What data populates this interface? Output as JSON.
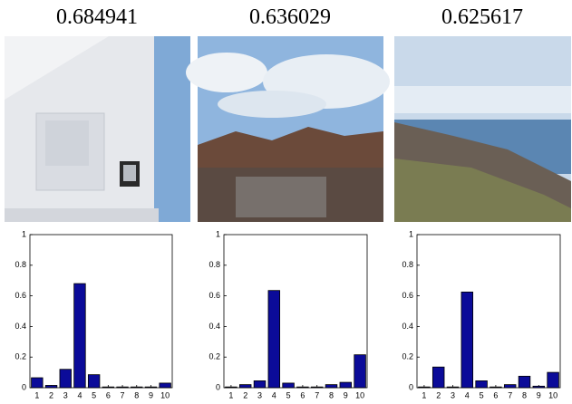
{
  "chart_data": [
    {
      "type": "bar",
      "title": "0.684941",
      "categories": [
        "1",
        "2",
        "3",
        "4",
        "5",
        "6",
        "7",
        "8",
        "9",
        "10"
      ],
      "values": [
        0.065,
        0.015,
        0.12,
        0.68,
        0.085,
        0.005,
        0.005,
        0.005,
        0.005,
        0.03
      ],
      "color": "#0b0b99",
      "ylim": [
        0,
        1
      ],
      "yticks": [
        0,
        0.2,
        0.4,
        0.6,
        0.8,
        1
      ]
    },
    {
      "type": "bar",
      "title": "0.636029",
      "categories": [
        "1",
        "2",
        "3",
        "4",
        "5",
        "6",
        "7",
        "8",
        "9",
        "10"
      ],
      "values": [
        0.005,
        0.02,
        0.045,
        0.635,
        0.03,
        0.005,
        0.005,
        0.02,
        0.035,
        0.215
      ],
      "color": "#0b0b99",
      "ylim": [
        0,
        1
      ],
      "yticks": [
        0,
        0.2,
        0.4,
        0.6,
        0.8,
        1
      ]
    },
    {
      "type": "bar",
      "title": "0.625617",
      "categories": [
        "1",
        "2",
        "3",
        "4",
        "5",
        "6",
        "7",
        "8",
        "9",
        "10"
      ],
      "values": [
        0.005,
        0.135,
        0.005,
        0.625,
        0.045,
        0.005,
        0.02,
        0.075,
        0.01,
        0.1
      ],
      "color": "#0b0b99",
      "ylim": [
        0,
        1
      ],
      "yticks": [
        0,
        0.2,
        0.4,
        0.6,
        0.8,
        1
      ]
    }
  ]
}
